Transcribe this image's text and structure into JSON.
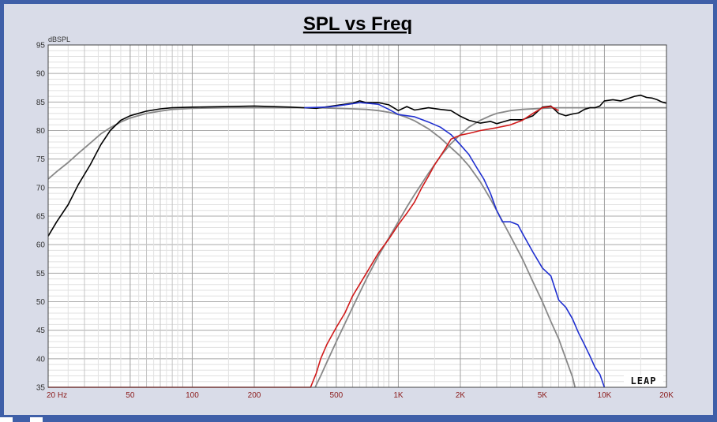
{
  "chart_data": {
    "type": "line",
    "title": "SPL vs Freq",
    "ylabel": "dBSPL",
    "xlabel": "",
    "x_scale": "log",
    "xlim": [
      20,
      20000
    ],
    "ylim": [
      35,
      95
    ],
    "y_ticks": [
      95,
      90,
      85,
      80,
      75,
      70,
      65,
      60,
      55,
      50,
      45,
      40,
      35
    ],
    "x_ticks": [
      {
        "value": 20,
        "label": "20  Hz"
      },
      {
        "value": 50,
        "label": "50"
      },
      {
        "value": 100,
        "label": "100"
      },
      {
        "value": 200,
        "label": "200"
      },
      {
        "value": 500,
        "label": "500"
      },
      {
        "value": 1000,
        "label": "1K"
      },
      {
        "value": 2000,
        "label": "2K"
      },
      {
        "value": 5000,
        "label": "5K"
      },
      {
        "value": 10000,
        "label": "10K"
      },
      {
        "value": 20000,
        "label": "20K"
      }
    ],
    "grid": true,
    "logo_text": "LEAP",
    "series": [
      {
        "color": "#000000",
        "points": [
          [
            20,
            61.5
          ],
          [
            22,
            64
          ],
          [
            25,
            67
          ],
          [
            28,
            70.5
          ],
          [
            32,
            74
          ],
          [
            36,
            77.5
          ],
          [
            40,
            80
          ],
          [
            45,
            81.8
          ],
          [
            50,
            82.6
          ],
          [
            60,
            83.4
          ],
          [
            70,
            83.8
          ],
          [
            80,
            84
          ],
          [
            100,
            84.1
          ],
          [
            150,
            84.2
          ],
          [
            200,
            84.3
          ],
          [
            300,
            84.1
          ],
          [
            400,
            83.9
          ],
          [
            500,
            84.4
          ],
          [
            600,
            84.8
          ],
          [
            650,
            85.2
          ],
          [
            700,
            84.9
          ],
          [
            800,
            84.9
          ],
          [
            900,
            84.5
          ],
          [
            1000,
            83.5
          ],
          [
            1100,
            84.2
          ],
          [
            1200,
            83.6
          ],
          [
            1400,
            84
          ],
          [
            1600,
            83.7
          ],
          [
            1800,
            83.5
          ],
          [
            2000,
            82.5
          ],
          [
            2200,
            81.8
          ],
          [
            2500,
            81.3
          ],
          [
            2800,
            81.6
          ],
          [
            3000,
            81.2
          ],
          [
            3500,
            81.9
          ],
          [
            4000,
            81.9
          ],
          [
            4500,
            82.6
          ],
          [
            5000,
            84.1
          ],
          [
            5500,
            84.3
          ],
          [
            6000,
            83
          ],
          [
            6500,
            82.6
          ],
          [
            7000,
            82.9
          ],
          [
            7500,
            83.1
          ],
          [
            8000,
            83.7
          ],
          [
            8500,
            84
          ],
          [
            9000,
            84
          ],
          [
            9500,
            84.3
          ],
          [
            10000,
            85.2
          ],
          [
            11000,
            85.4
          ],
          [
            12000,
            85.2
          ],
          [
            13000,
            85.6
          ],
          [
            14000,
            86
          ],
          [
            15000,
            86.2
          ],
          [
            16000,
            85.8
          ],
          [
            17000,
            85.7
          ],
          [
            18000,
            85.4
          ],
          [
            19000,
            85
          ],
          [
            20000,
            84.8
          ]
        ]
      },
      {
        "color": "#1f2fd0",
        "points": [
          [
            350,
            84
          ],
          [
            450,
            84.1
          ],
          [
            500,
            84.3
          ],
          [
            600,
            84.7
          ],
          [
            650,
            84.9
          ],
          [
            700,
            84.8
          ],
          [
            800,
            84.6
          ],
          [
            900,
            83.7
          ],
          [
            1000,
            82.8
          ],
          [
            1100,
            82.6
          ],
          [
            1200,
            82.4
          ],
          [
            1400,
            81.5
          ],
          [
            1600,
            80.6
          ],
          [
            1800,
            79.3
          ],
          [
            2000,
            77.5
          ],
          [
            2200,
            75.8
          ],
          [
            2400,
            73.5
          ],
          [
            2600,
            71.5
          ],
          [
            2800,
            69
          ],
          [
            3000,
            66
          ],
          [
            3200,
            64
          ],
          [
            3500,
            64
          ],
          [
            3800,
            63.5
          ],
          [
            4000,
            62
          ],
          [
            4500,
            58.7
          ],
          [
            5000,
            55.9
          ],
          [
            5500,
            54.5
          ],
          [
            6000,
            50.3
          ],
          [
            6500,
            49
          ],
          [
            7000,
            47
          ],
          [
            7500,
            44.5
          ],
          [
            8000,
            42.5
          ],
          [
            8500,
            40.5
          ],
          [
            9000,
            38.5
          ],
          [
            9500,
            37.3
          ],
          [
            10000,
            35
          ]
        ]
      },
      {
        "color": "#d01a1a",
        "points": [
          [
            20,
            35
          ],
          [
            300,
            35
          ],
          [
            375,
            35
          ],
          [
            400,
            37.5
          ],
          [
            420,
            40
          ],
          [
            450,
            42.5
          ],
          [
            500,
            45.5
          ],
          [
            550,
            48
          ],
          [
            600,
            51
          ],
          [
            700,
            55
          ],
          [
            800,
            58.5
          ],
          [
            900,
            61
          ],
          [
            1000,
            63.5
          ],
          [
            1100,
            65.5
          ],
          [
            1200,
            67.5
          ],
          [
            1300,
            70
          ],
          [
            1400,
            72
          ],
          [
            1500,
            74
          ],
          [
            1600,
            75.5
          ],
          [
            1700,
            77
          ],
          [
            1800,
            78.5
          ],
          [
            2000,
            79.2
          ],
          [
            2200,
            79.5
          ],
          [
            2500,
            80
          ],
          [
            3000,
            80.5
          ],
          [
            3500,
            81
          ],
          [
            4000,
            81.8
          ],
          [
            4500,
            83
          ],
          [
            5000,
            84
          ],
          [
            5500,
            84.2
          ],
          [
            6000,
            83.5
          ]
        ]
      },
      {
        "color": "#888888",
        "points": [
          [
            20,
            71.5
          ],
          [
            22,
            72.8
          ],
          [
            25,
            74.4
          ],
          [
            28,
            76
          ],
          [
            32,
            77.8
          ],
          [
            36,
            79.4
          ],
          [
            40,
            80.5
          ],
          [
            45,
            81.5
          ],
          [
            50,
            82.2
          ],
          [
            60,
            83
          ],
          [
            70,
            83.4
          ],
          [
            80,
            83.7
          ],
          [
            100,
            83.9
          ],
          [
            150,
            84
          ],
          [
            200,
            84
          ],
          [
            300,
            84
          ],
          [
            400,
            84
          ],
          [
            500,
            83.9
          ],
          [
            600,
            83.8
          ],
          [
            700,
            83.7
          ],
          [
            800,
            83.5
          ],
          [
            900,
            83.2
          ],
          [
            1000,
            82.8
          ],
          [
            1100,
            82.3
          ],
          [
            1200,
            81.7
          ],
          [
            1400,
            80.3
          ],
          [
            1600,
            78.7
          ],
          [
            1800,
            77
          ],
          [
            2000,
            75.5
          ],
          [
            2200,
            73.8
          ],
          [
            2500,
            71
          ],
          [
            2800,
            68
          ],
          [
            3000,
            66
          ],
          [
            3500,
            61.5
          ],
          [
            4000,
            57.5
          ],
          [
            4500,
            53.5
          ],
          [
            5000,
            50
          ],
          [
            5500,
            46.5
          ],
          [
            6000,
            43.5
          ],
          [
            6500,
            40
          ],
          [
            7000,
            36.8
          ],
          [
            7200,
            35
          ]
        ]
      },
      {
        "color": "#888888",
        "points": [
          [
            395,
            35
          ],
          [
            420,
            37
          ],
          [
            450,
            39.4
          ],
          [
            500,
            43
          ],
          [
            600,
            49
          ],
          [
            700,
            54
          ],
          [
            800,
            58
          ],
          [
            900,
            61.2
          ],
          [
            1000,
            64
          ],
          [
            1100,
            66.6
          ],
          [
            1200,
            68.8
          ],
          [
            1400,
            72.5
          ],
          [
            1600,
            75.5
          ],
          [
            1800,
            77.7
          ],
          [
            2000,
            79.3
          ],
          [
            2200,
            80.6
          ],
          [
            2500,
            81.8
          ],
          [
            2800,
            82.6
          ],
          [
            3000,
            83
          ],
          [
            3500,
            83.5
          ],
          [
            4000,
            83.7
          ],
          [
            5000,
            83.9
          ],
          [
            6000,
            84
          ],
          [
            8000,
            84
          ],
          [
            10000,
            84
          ],
          [
            15000,
            84
          ],
          [
            20000,
            84
          ]
        ]
      }
    ]
  }
}
